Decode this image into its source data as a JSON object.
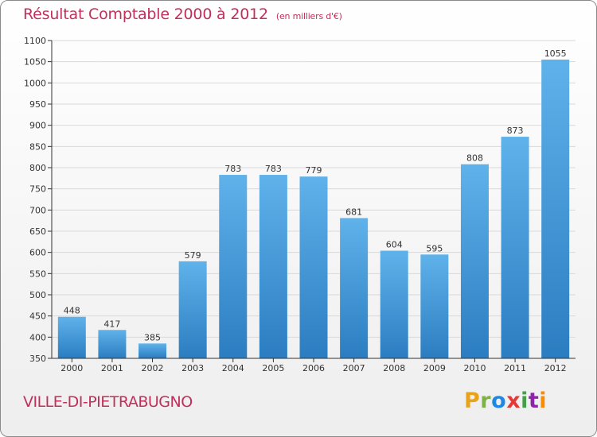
{
  "header": {
    "title": "Résultat Comptable 2000 à 2012",
    "unit": "(en milliers d'€)"
  },
  "footer": {
    "city": "VILLE-DI-PIETRABUGNO",
    "brand": {
      "letters": [
        "P",
        "r",
        "o",
        "x",
        "i",
        "t",
        "i"
      ],
      "colors": [
        "#e8a21b",
        "#7cb342",
        "#1e88e5",
        "#e53935",
        "#43a047",
        "#8e24aa",
        "#fb8c00"
      ]
    }
  },
  "colors": {
    "bar_light": "#5fb2ea",
    "bar_dark": "#2b7dc1",
    "axis": "#333333",
    "grid": "#d9d9d9"
  },
  "chart_data": {
    "type": "bar",
    "categories": [
      "2000",
      "2001",
      "2002",
      "2003",
      "2004",
      "2005",
      "2006",
      "2007",
      "2008",
      "2009",
      "2010",
      "2011",
      "2012"
    ],
    "values": [
      448,
      417,
      385,
      579,
      783,
      783,
      779,
      681,
      604,
      595,
      808,
      873,
      1055
    ],
    "ylim": [
      350,
      1100
    ],
    "yticks": [
      350,
      400,
      450,
      500,
      550,
      600,
      650,
      700,
      750,
      800,
      850,
      900,
      950,
      1000,
      1050,
      1100
    ],
    "grid": true,
    "value_labels": true
  }
}
